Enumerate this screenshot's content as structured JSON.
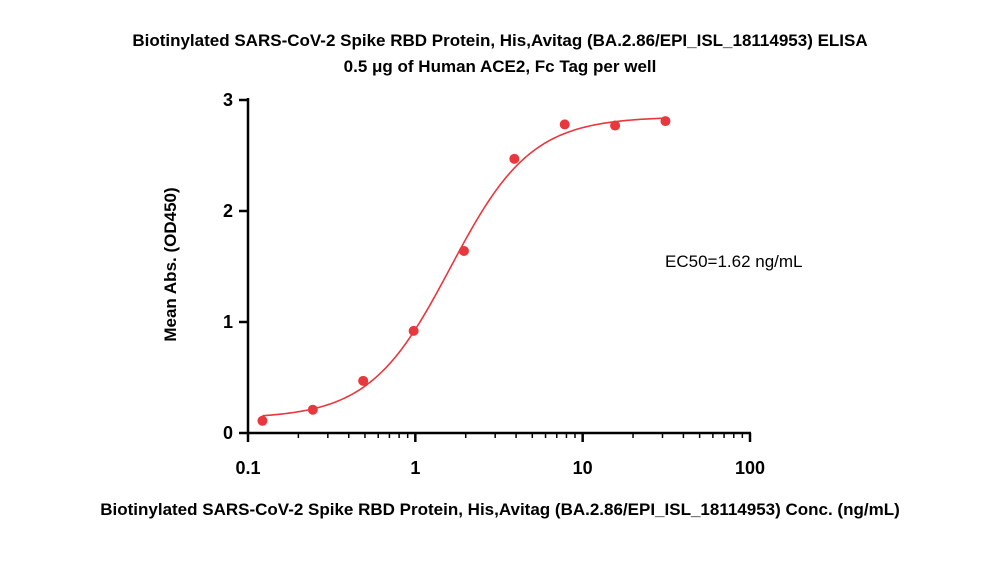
{
  "chart_data": {
    "type": "scatter",
    "title": "Biotinylated SARS-CoV-2 Spike RBD Protein, His,Avitag (BA.2.86/EPI_ISL_18114953) ELISA",
    "subtitle": "0.5 μg of Human ACE2, Fc Tag per well",
    "xlabel": "Biotinylated SARS-CoV-2 Spike RBD Protein, His,Avitag (BA.2.86/EPI_ISL_18114953) Conc. (ng/mL)",
    "ylabel": "Mean Abs. (OD450)",
    "x_scale": "log",
    "xlim": [
      0.1,
      100
    ],
    "ylim": [
      0,
      3
    ],
    "x_ticks": [
      0.1,
      1,
      10,
      100
    ],
    "x_tick_labels": [
      "0.1",
      "1",
      "10",
      "100"
    ],
    "y_ticks": [
      0,
      1,
      2,
      3
    ],
    "y_tick_labels": [
      "0",
      "1",
      "2",
      "3"
    ],
    "grid": false,
    "series": [
      {
        "color": "#e8383d",
        "x": [
          0.122,
          0.244,
          0.488,
          0.977,
          1.953,
          3.906,
          7.813,
          15.625,
          31.25
        ],
        "y": [
          0.11,
          0.21,
          0.47,
          0.92,
          1.64,
          2.47,
          2.78,
          2.77,
          2.81
        ]
      }
    ],
    "fit": {
      "model": "4PL",
      "bottom": 0.13,
      "top": 2.85,
      "ec50": 1.62,
      "hill": 1.8
    },
    "annotations": [
      {
        "text": "EC50=1.62 ng/mL"
      }
    ]
  }
}
